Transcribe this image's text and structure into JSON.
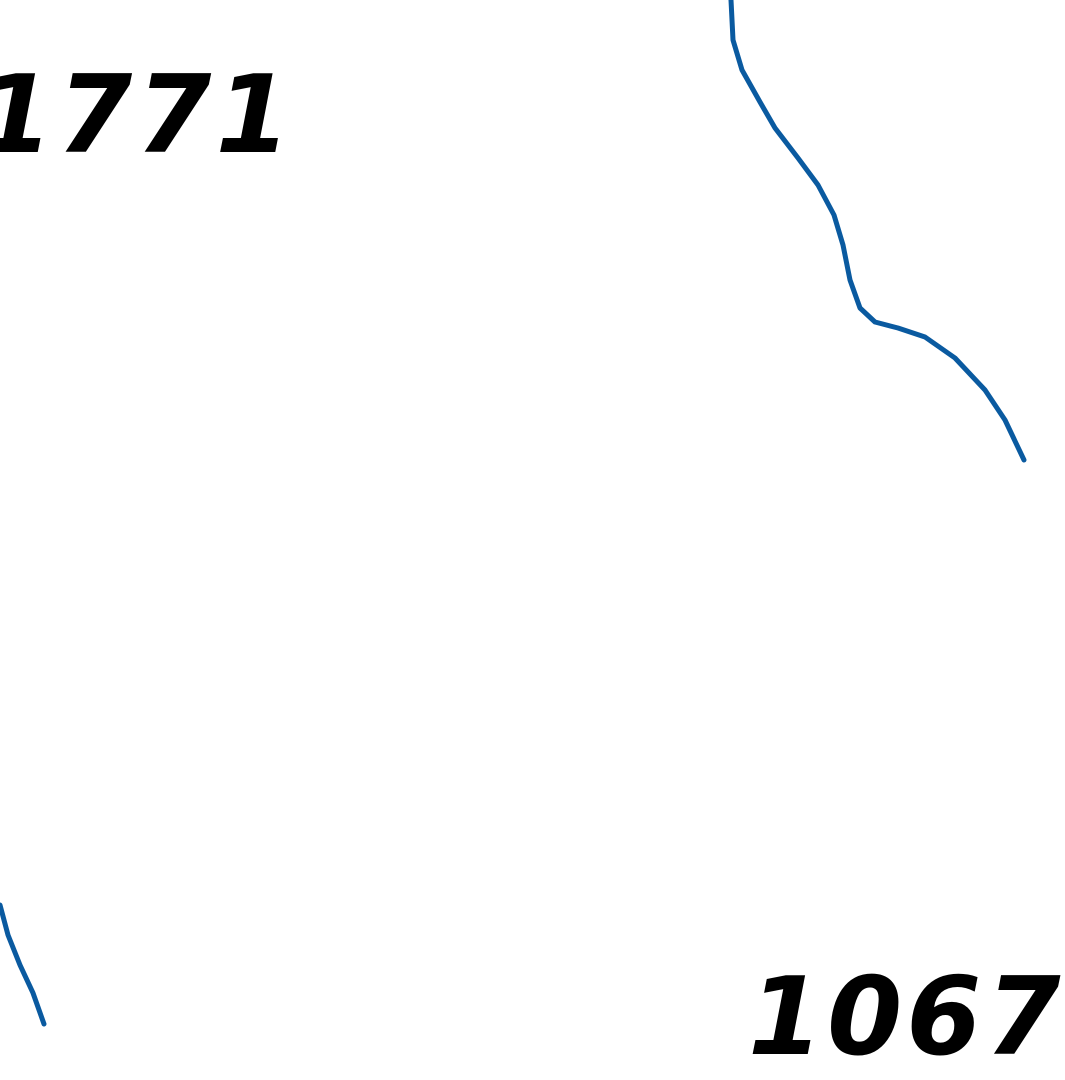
{
  "map": {
    "labels": {
      "top_left": "1771",
      "bottom_right": "1067"
    },
    "line_color": "#0a5aa0",
    "text_color": "#000000",
    "background": "#ffffff"
  }
}
